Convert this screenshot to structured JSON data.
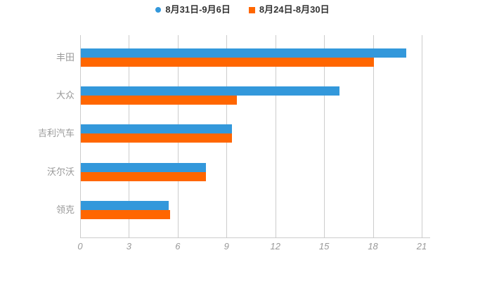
{
  "legend": {
    "items": [
      {
        "label": "8月31日-9月6日",
        "color": "#3398db",
        "marker": "circle"
      },
      {
        "label": "8月24日-8月30日",
        "color": "#ff6600",
        "marker": "square"
      }
    ]
  },
  "chart_data": {
    "type": "bar",
    "orientation": "horizontal",
    "title": "",
    "categories": [
      "丰田",
      "大众",
      "吉利汽车",
      "沃尔沃",
      "领克"
    ],
    "series": [
      {
        "name": "8月31日-9月6日",
        "color": "#3398db",
        "values": [
          20.0,
          15.9,
          9.3,
          7.7,
          5.4
        ]
      },
      {
        "name": "8月24日-8月30日",
        "color": "#ff6600",
        "values": [
          18.0,
          9.6,
          9.3,
          7.7,
          5.5
        ]
      }
    ],
    "xticks": [
      0,
      3,
      6,
      9,
      12,
      15,
      18,
      21
    ],
    "xlim": [
      0,
      21
    ],
    "grid": true,
    "legend_position": "top",
    "colors": {
      "grid_line": "#cccccc",
      "axis_line": "#cccccc",
      "tick_label": "#999999",
      "category_label": "#999999",
      "legend_text": "#333333",
      "background": "#ffffff"
    }
  }
}
